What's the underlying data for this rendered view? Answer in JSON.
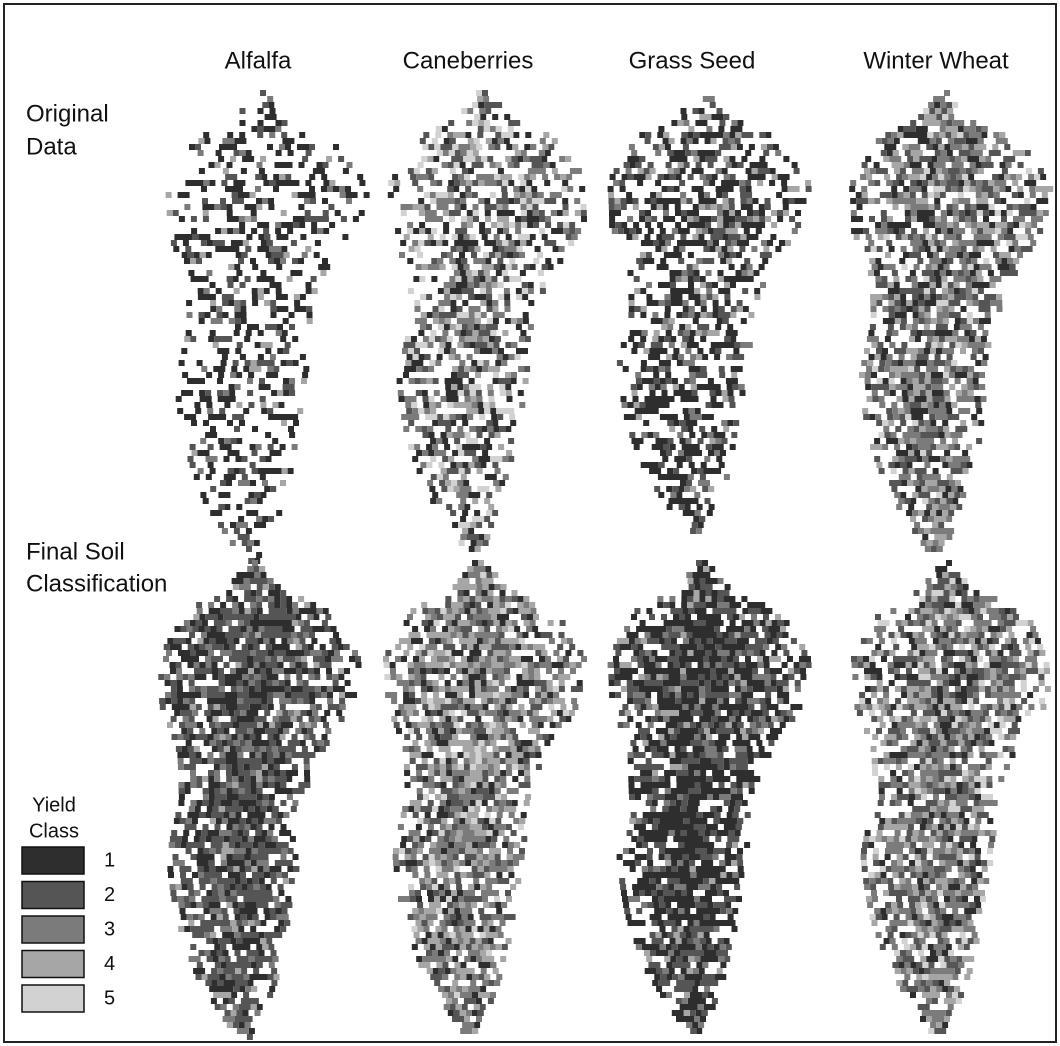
{
  "columns": [
    "Alfalfa",
    "Caneberries",
    "Grass Seed",
    "Winter Wheat"
  ],
  "rows": [
    [
      "Original",
      "Data"
    ],
    [
      "Final Soil",
      "Classification"
    ]
  ],
  "legend": {
    "title": [
      "Yield",
      "Class"
    ],
    "items": [
      {
        "label": "1",
        "color": "#2e2e2e"
      },
      {
        "label": "2",
        "color": "#555555"
      },
      {
        "label": "3",
        "color": "#7b7b7b"
      },
      {
        "label": "4",
        "color": "#a6a6a6"
      },
      {
        "label": "5",
        "color": "#d2d2d2"
      }
    ]
  }
}
